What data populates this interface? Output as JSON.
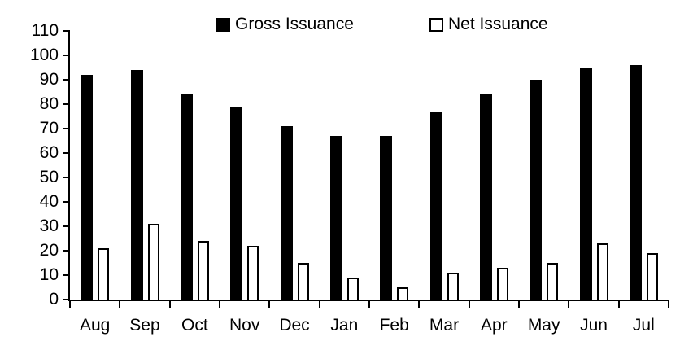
{
  "legend": [
    {
      "label": "Gross Issuance",
      "swatch": "filled-black-square",
      "color": "#000000"
    },
    {
      "label": "Net Issuance",
      "swatch": "outlined-white-square",
      "color": "#FFFFFF"
    }
  ],
  "colors": {
    "axis": "#000000",
    "background": "#FFFFFF",
    "gross_bar": "#000000",
    "net_bar_fill": "#FFFFFF",
    "net_bar_border": "#000000"
  },
  "chart_data": {
    "type": "bar",
    "title": "",
    "xlabel": "",
    "ylabel": "",
    "categories": [
      "Aug",
      "Sep",
      "Oct",
      "Nov",
      "Dec",
      "Jan",
      "Feb",
      "Mar",
      "Apr",
      "May",
      "Jun",
      "Jul"
    ],
    "series": [
      {
        "name": "Gross Issuance",
        "style": "filled",
        "fill": "#000000",
        "values": [
          92,
          94,
          84,
          79,
          71,
          67,
          67,
          77,
          84,
          90,
          95,
          96
        ]
      },
      {
        "name": "Net Issuance",
        "style": "outlined",
        "fill": "#FFFFFF",
        "stroke": "#000000",
        "values": [
          21,
          31,
          24,
          22,
          15,
          9,
          5,
          11,
          13,
          15,
          23,
          19
        ]
      }
    ],
    "ylim": [
      0,
      110
    ],
    "ytick_step": 10,
    "yticks": [
      0,
      10,
      20,
      30,
      40,
      50,
      60,
      70,
      80,
      90,
      100,
      110
    ],
    "grid": false,
    "legend_position": "top"
  }
}
